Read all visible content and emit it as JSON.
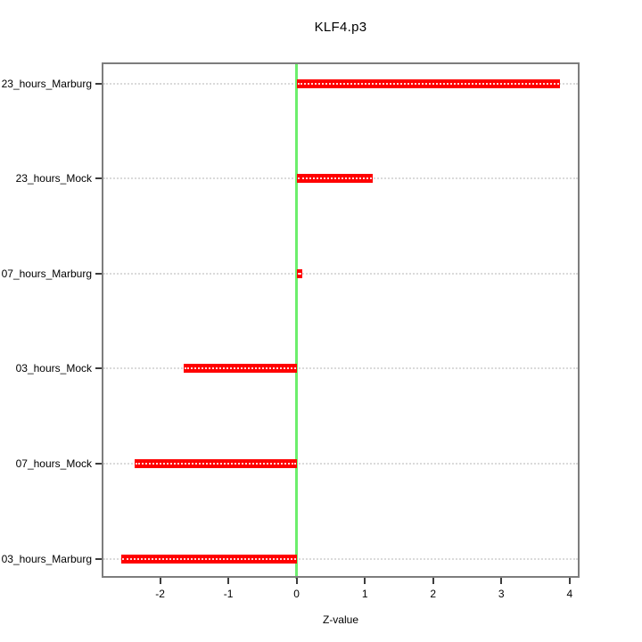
{
  "chart_data": {
    "type": "bar",
    "orientation": "horizontal",
    "title": "KLF4.p3",
    "xlabel": "Z-value",
    "categories": [
      "23_hours_Marburg",
      "23_hours_Mock",
      "07_hours_Marburg",
      "03_hours_Mock",
      "07_hours_Mock",
      "03_hours_Marburg"
    ],
    "values": [
      3.86,
      1.12,
      0.08,
      -1.65,
      -2.37,
      -2.57
    ],
    "category_order": "top_to_bottom",
    "xlim": [
      -2.83,
      4.12
    ],
    "xticks": [
      -2,
      -1,
      0,
      1,
      2,
      3,
      4
    ],
    "grid": "horizontal dotted line per category, full width",
    "zero_reference_line": 0,
    "legend": "none",
    "colors": {
      "bar": "#ff0000",
      "zero_line": "#6cef6c",
      "gridline": "#dadada",
      "box_border": "#7d7d7d",
      "tick": "#3c3c3c",
      "text": "#000000",
      "background": "#ffffff"
    }
  }
}
